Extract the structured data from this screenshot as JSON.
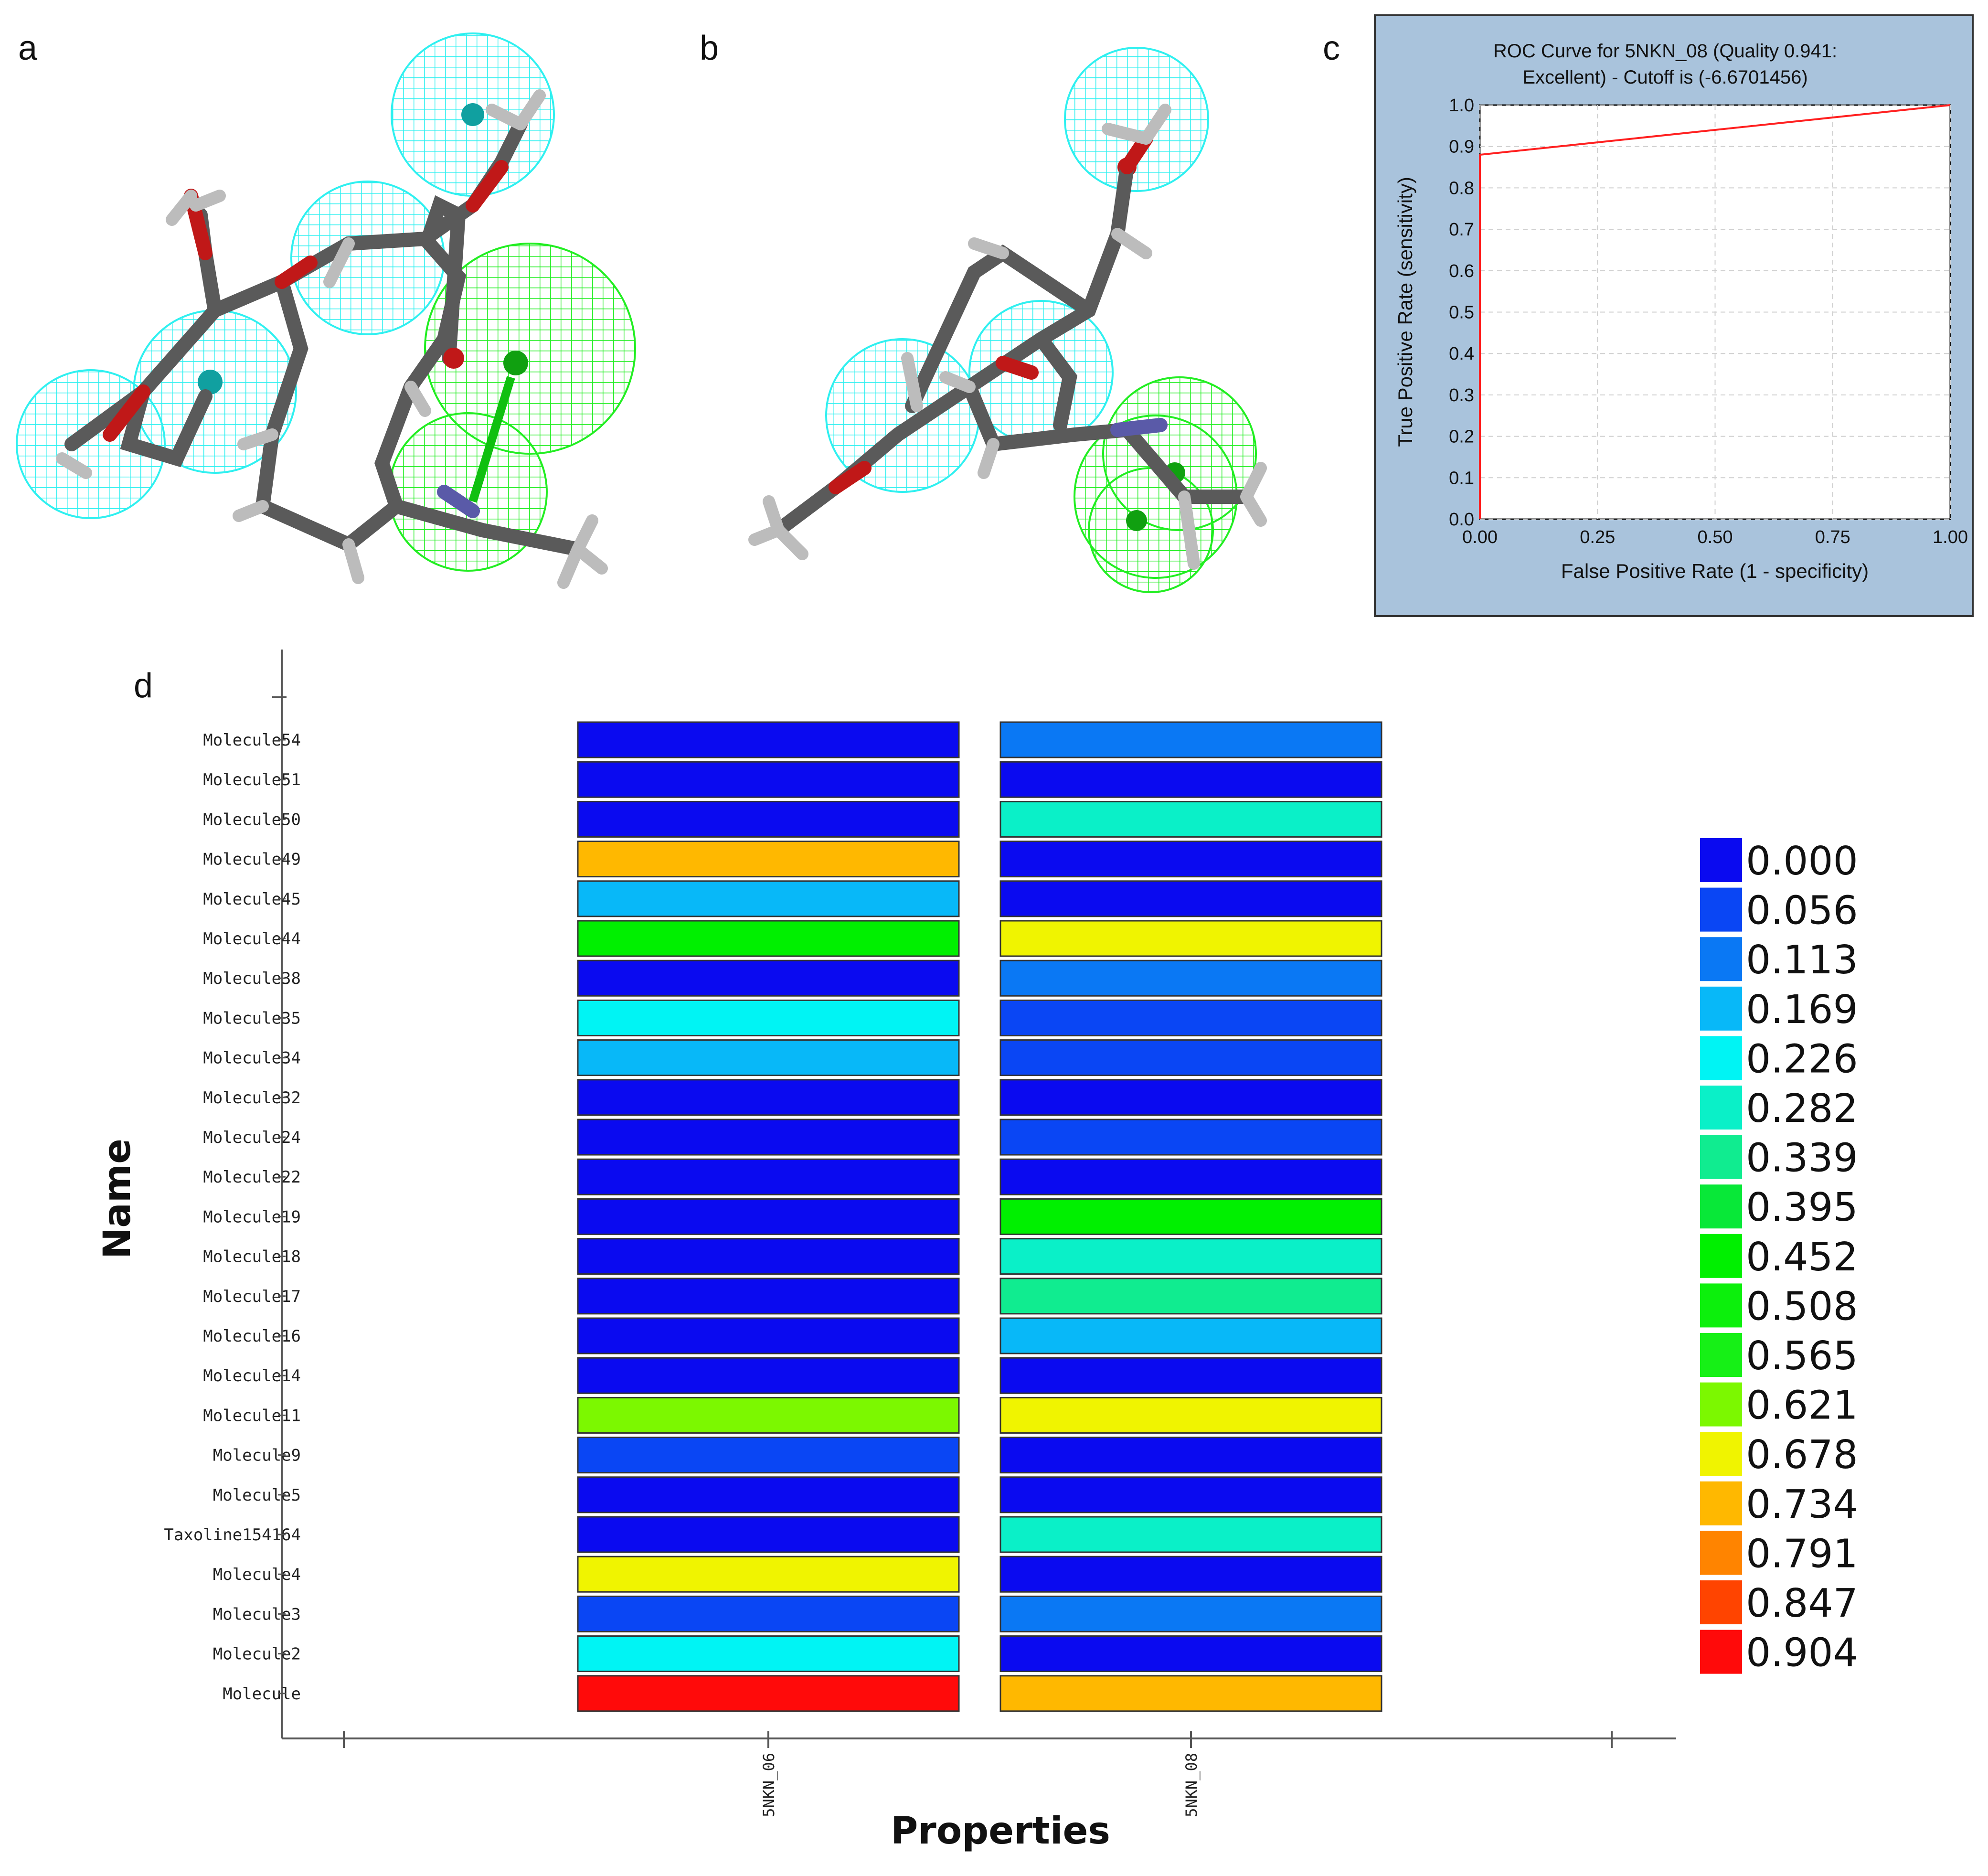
{
  "panels": {
    "a": {
      "letter": "a"
    },
    "b": {
      "letter": "b"
    },
    "c": {
      "letter": "c"
    },
    "d": {
      "letter": "d"
    }
  },
  "colors": {
    "hydrophobic_feature": "#2ff0f0",
    "hbond_feature": "#22ee22",
    "carbon": "#5a5a5a",
    "oxygen": "#c01818",
    "nitrogen": "#5a5aa8",
    "hydrogen": "#bcbcbc",
    "roc_background": "#a9c3dc",
    "roc_curve": "#ff2020"
  },
  "roc": {
    "title_line1": "ROC Curve for  5NKN_08  (Quality 0.941:",
    "title_line2": "Excellent)  - Cutoff is  (-6.6701456)",
    "xlabel": "False Positive Rate (1 - specificity)",
    "ylabel": "True Positive Rate (sensitivity)",
    "xticks": [
      "0.00",
      "0.25",
      "0.50",
      "0.75",
      "1.00"
    ],
    "yticks": [
      "0.0",
      "0.1",
      "0.2",
      "0.3",
      "0.4",
      "0.5",
      "0.6",
      "0.7",
      "0.8",
      "0.9",
      "1.0"
    ]
  },
  "chart_data": [
    {
      "type": "line",
      "panel": "c",
      "title": "ROC Curve for  5NKN_08  (Quality 0.941: Excellent)  - Cutoff is  (-6.6701456)",
      "xlabel": "False Positive Rate (1 - specificity)",
      "ylabel": "True Positive Rate (sensitivity)",
      "xlim": [
        0,
        1
      ],
      "ylim": [
        0,
        1
      ],
      "grid": true,
      "series": [
        {
          "x": [
            0.0,
            0.0,
            1.0
          ],
          "y": [
            0.0,
            0.88,
            1.0
          ]
        }
      ]
    },
    {
      "type": "heatmap",
      "panel": "d",
      "xlabel": "Properties",
      "ylabel": "Name",
      "columns": [
        "5NKN_06",
        "5NKN_08"
      ],
      "rows": [
        "Molecule54",
        "Molecule51",
        "Molecule50",
        "Molecule49",
        "Molecule45",
        "Molecule44",
        "Molecule38",
        "Molecule35",
        "Molecule34",
        "Molecule32",
        "Molecule24",
        "Molecule22",
        "Molecule19",
        "Molecule18",
        "Molecule17",
        "Molecule16",
        "Molecule14",
        "Molecule11",
        "Molecule9",
        "Molecule5",
        "Taxoline154164",
        "Molecule4",
        "Molecule3",
        "Molecule2",
        "Molecule"
      ],
      "values": [
        [
          0.0,
          0.113
        ],
        [
          0.0,
          0.0
        ],
        [
          0.0,
          0.282
        ],
        [
          0.734,
          0.0
        ],
        [
          0.169,
          0.0
        ],
        [
          0.452,
          0.678
        ],
        [
          0.0,
          0.113
        ],
        [
          0.226,
          0.056
        ],
        [
          0.169,
          0.056
        ],
        [
          0.0,
          0.0
        ],
        [
          0.0,
          0.056
        ],
        [
          0.0,
          0.0
        ],
        [
          0.0,
          0.452
        ],
        [
          0.0,
          0.282
        ],
        [
          0.0,
          0.339
        ],
        [
          0.0,
          0.169
        ],
        [
          0.0,
          0.0
        ],
        [
          0.621,
          0.678
        ],
        [
          0.056,
          0.0
        ],
        [
          0.0,
          0.0
        ],
        [
          0.0,
          0.282
        ],
        [
          0.678,
          0.0
        ],
        [
          0.056,
          0.113
        ],
        [
          0.226,
          0.0
        ],
        [
          0.904,
          0.734
        ]
      ],
      "legend": {
        "position": "right",
        "entries": [
          {
            "label": "0.000",
            "color": "#0a0af0"
          },
          {
            "label": "0.056",
            "color": "#0a46f4"
          },
          {
            "label": "0.113",
            "color": "#0a78f4"
          },
          {
            "label": "0.169",
            "color": "#08b8f8"
          },
          {
            "label": "0.226",
            "color": "#00f4f4"
          },
          {
            "label": "0.282",
            "color": "#0af0c8"
          },
          {
            "label": "0.339",
            "color": "#10ec90"
          },
          {
            "label": "0.395",
            "color": "#08e838"
          },
          {
            "label": "0.452",
            "color": "#00f000"
          },
          {
            "label": "0.508",
            "color": "#0cf00c"
          },
          {
            "label": "0.565",
            "color": "#16f016"
          },
          {
            "label": "0.621",
            "color": "#7cf800"
          },
          {
            "label": "0.678",
            "color": "#f0f400"
          },
          {
            "label": "0.734",
            "color": "#ffb800"
          },
          {
            "label": "0.791",
            "color": "#ff8400"
          },
          {
            "label": "0.847",
            "color": "#ff4400"
          },
          {
            "label": "0.904",
            "color": "#ff0a0a"
          }
        ]
      }
    }
  ]
}
